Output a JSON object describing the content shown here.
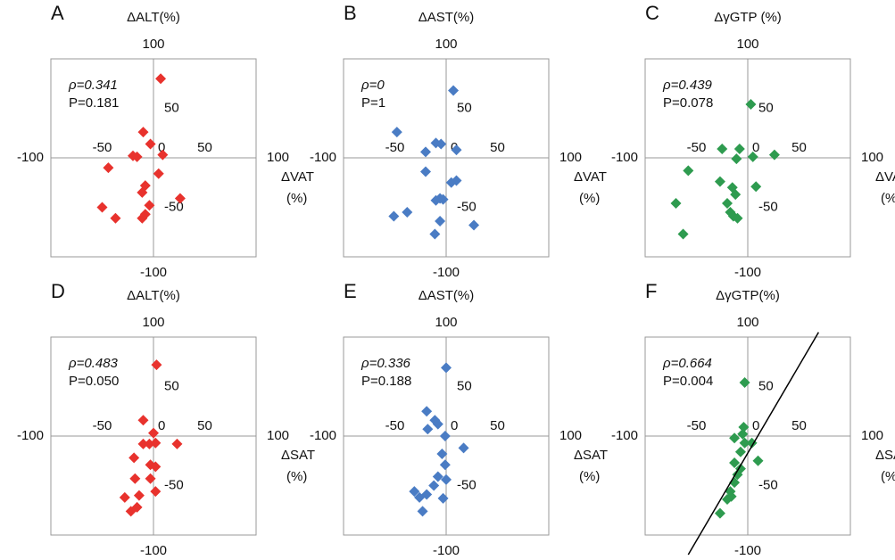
{
  "chart_data": [
    {
      "type": "scatter",
      "letter": "A",
      "y_label": "ΔALT(%)",
      "x_label_lines": [
        "ΔVAT",
        "(%)"
      ],
      "rho": "ρ=0.341",
      "p_value": "P=0.181",
      "color": "#e8322d",
      "x": [
        7,
        -10,
        -3,
        -20,
        -16,
        9,
        -44,
        5,
        -8,
        -11,
        26,
        -4,
        -50,
        -37,
        -8,
        -11
      ],
      "y": [
        80,
        26,
        14,
        2,
        1,
        3,
        -10,
        -16,
        -28,
        -35,
        -41,
        -48,
        -50,
        -61,
        -57,
        -61
      ],
      "xlim": [
        -100,
        100
      ],
      "ylim": [
        -100,
        100
      ],
      "xticks": [
        -100,
        -50,
        0,
        50,
        100
      ],
      "yticks": [
        -100,
        -50,
        50,
        100
      ]
    },
    {
      "type": "scatter",
      "letter": "B",
      "y_label": "ΔAST(%)",
      "x_label_lines": [
        "ΔVAT",
        "(%)"
      ],
      "rho": "ρ=0",
      "p_value": "P=1",
      "color": "#4a7cc4",
      "x": [
        7,
        -48,
        -10,
        -5,
        -20,
        10,
        -20,
        10,
        5,
        -6,
        -10,
        -3,
        -51,
        -38,
        -6,
        27,
        -11
      ],
      "y": [
        68,
        26,
        15,
        14,
        6,
        8,
        -14,
        -23,
        -25,
        -41,
        -43,
        -42,
        -59,
        -55,
        -64,
        -68,
        -77
      ],
      "xlim": [
        -100,
        100
      ],
      "ylim": [
        -100,
        100
      ],
      "xticks": [
        -100,
        -50,
        0,
        50,
        100
      ],
      "yticks": [
        -100,
        -50,
        50,
        100
      ]
    },
    {
      "type": "scatter",
      "letter": "C",
      "y_label": "ΔγGTP (%)",
      "x_label_lines": [
        "ΔVAT",
        "(%)"
      ],
      "rho": "ρ=0.439",
      "p_value": "P=0.078",
      "color": "#2e9b4f",
      "x": [
        3,
        -25,
        -8,
        26,
        -11,
        5,
        -58,
        -27,
        -15,
        8,
        -12,
        -20,
        -70,
        -17,
        -14,
        -10,
        -63
      ],
      "y": [
        54,
        9,
        9,
        3,
        -1,
        1,
        -13,
        -24,
        -30,
        -29,
        -37,
        -46,
        -46,
        -55,
        -59,
        -61,
        -77
      ],
      "xlim": [
        -100,
        100
      ],
      "ylim": [
        -100,
        100
      ],
      "xticks": [
        -100,
        -50,
        0,
        50,
        100
      ],
      "yticks": [
        -100,
        -50,
        50,
        100
      ]
    },
    {
      "type": "scatter",
      "letter": "D",
      "y_label": "ΔALT(%)",
      "x_label_lines": [
        "ΔSAT",
        "(%)"
      ],
      "rho": "ρ=0.483",
      "p_value": "P=0.050",
      "color": "#e8322d",
      "x": [
        3,
        -10,
        -10,
        -4,
        0,
        2,
        23,
        -19,
        -3,
        2,
        -18,
        -3,
        2,
        -14,
        -28,
        -16,
        -22
      ],
      "y": [
        72,
        16,
        -8,
        -8,
        3,
        -7,
        -8,
        -22,
        -29,
        -31,
        -43,
        -43,
        -56,
        -60,
        -62,
        -72,
        -76
      ],
      "xlim": [
        -100,
        100
      ],
      "ylim": [
        -100,
        100
      ],
      "xticks": [
        -100,
        -50,
        0,
        50,
        100
      ],
      "yticks": [
        -100,
        -50,
        50,
        100
      ]
    },
    {
      "type": "scatter",
      "letter": "E",
      "y_label": "ΔAST(%)",
      "x_label_lines": [
        "ΔSAT",
        "(%)"
      ],
      "rho": "ρ=0.336",
      "p_value": "P=0.188",
      "color": "#4a7cc4",
      "x": [
        0,
        -19,
        -11,
        -8,
        -18,
        -1,
        17,
        -4,
        -1,
        -8,
        0,
        -12,
        -31,
        -19,
        -3,
        -26,
        -23
      ],
      "y": [
        69,
        25,
        16,
        12,
        7,
        0,
        -12,
        -18,
        -29,
        -41,
        -44,
        -50,
        -56,
        -59,
        -63,
        -62,
        -76
      ],
      "xlim": [
        -100,
        100
      ],
      "ylim": [
        -100,
        100
      ],
      "xticks": [
        -100,
        -50,
        0,
        50,
        100
      ],
      "yticks": [
        -100,
        -50,
        50,
        100
      ]
    },
    {
      "type": "scatter",
      "letter": "F",
      "y_label": "ΔγGTP(%)",
      "x_label_lines": [
        "ΔSAT",
        "(%)"
      ],
      "rho": "ρ=0.664",
      "p_value": "P=0.004",
      "color": "#2e9b4f",
      "x": [
        -3,
        -4,
        -5,
        -3,
        -13,
        4,
        -7,
        -13,
        10,
        -7,
        -10,
        -13,
        -17,
        -16,
        -20,
        -27
      ],
      "y": [
        54,
        9,
        2,
        -7,
        -2,
        -7,
        -16,
        -27,
        -25,
        -33,
        -39,
        -47,
        -56,
        -61,
        -64,
        -78
      ],
      "xlim": [
        -100,
        100
      ],
      "ylim": [
        -100,
        100
      ],
      "xticks": [
        -100,
        -50,
        0,
        50,
        100
      ],
      "yticks": [
        -100,
        -50,
        50,
        100
      ],
      "fit_line": {
        "slope": 1.78,
        "intercept": -18,
        "x_range": [
          -58,
          69
        ]
      }
    }
  ]
}
